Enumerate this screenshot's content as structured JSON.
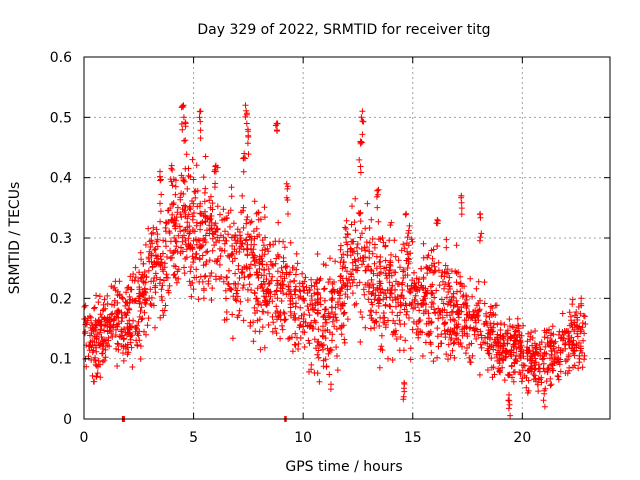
{
  "chart_data": {
    "type": "scatter",
    "title": "Day 329 of 2022, SRMTID for receiver titg",
    "xlabel": "GPS time / hours",
    "ylabel": "SRMTID / TECUs",
    "xlim": [
      0,
      24
    ],
    "ylim": [
      0,
      0.6
    ],
    "xticks": [
      0,
      5,
      10,
      15,
      20
    ],
    "yticks": [
      0,
      0.1,
      0.2,
      0.3,
      0.4,
      0.5,
      0.6
    ],
    "ytick_labels": [
      "0",
      "0.1",
      "0.2",
      "0.3",
      "0.4",
      "0.5",
      "0.6"
    ],
    "grid": true,
    "marker": "plus",
    "color": "#ff0000",
    "series": [
      {
        "name": "SRMTID",
        "profile": [
          [
            0.0,
            0.14
          ],
          [
            0.5,
            0.13
          ],
          [
            1.0,
            0.15
          ],
          [
            1.5,
            0.17
          ],
          [
            2.0,
            0.16
          ],
          [
            2.5,
            0.18
          ],
          [
            3.0,
            0.24
          ],
          [
            3.5,
            0.26
          ],
          [
            4.0,
            0.28
          ],
          [
            4.5,
            0.33
          ],
          [
            5.0,
            0.32
          ],
          [
            5.5,
            0.31
          ],
          [
            6.0,
            0.3
          ],
          [
            6.5,
            0.27
          ],
          [
            7.0,
            0.26
          ],
          [
            7.5,
            0.27
          ],
          [
            8.0,
            0.24
          ],
          [
            8.5,
            0.23
          ],
          [
            9.0,
            0.22
          ],
          [
            9.5,
            0.2
          ],
          [
            10.0,
            0.19
          ],
          [
            10.5,
            0.17
          ],
          [
            11.0,
            0.15
          ],
          [
            11.5,
            0.17
          ],
          [
            12.0,
            0.25
          ],
          [
            12.5,
            0.27
          ],
          [
            13.0,
            0.25
          ],
          [
            13.5,
            0.22
          ],
          [
            14.0,
            0.22
          ],
          [
            14.5,
            0.21
          ],
          [
            15.0,
            0.2
          ],
          [
            15.5,
            0.2
          ],
          [
            16.0,
            0.19
          ],
          [
            16.5,
            0.18
          ],
          [
            17.0,
            0.17
          ],
          [
            17.5,
            0.16
          ],
          [
            18.0,
            0.16
          ],
          [
            18.5,
            0.14
          ],
          [
            19.0,
            0.12
          ],
          [
            19.5,
            0.12
          ],
          [
            20.0,
            0.11
          ],
          [
            20.5,
            0.1
          ],
          [
            21.0,
            0.1
          ],
          [
            21.5,
            0.11
          ],
          [
            22.0,
            0.12
          ],
          [
            22.5,
            0.14
          ],
          [
            22.9,
            0.15
          ]
        ],
        "spread_profile": [
          [
            0.0,
            0.05
          ],
          [
            3.0,
            0.07
          ],
          [
            5.0,
            0.1
          ],
          [
            8.0,
            0.09
          ],
          [
            10.0,
            0.07
          ],
          [
            12.5,
            0.1
          ],
          [
            16.0,
            0.08
          ],
          [
            19.0,
            0.05
          ],
          [
            23.0,
            0.05
          ]
        ],
        "spikes": [
          [
            4.5,
            0.52
          ],
          [
            4.6,
            0.5
          ],
          [
            5.3,
            0.51
          ],
          [
            7.4,
            0.52
          ],
          [
            7.5,
            0.48
          ],
          [
            8.8,
            0.49
          ],
          [
            12.7,
            0.51
          ],
          [
            12.6,
            0.46
          ],
          [
            3.5,
            0.41
          ],
          [
            4.0,
            0.42
          ],
          [
            6.0,
            0.42
          ],
          [
            7.3,
            0.44
          ],
          [
            9.3,
            0.39
          ],
          [
            13.4,
            0.38
          ],
          [
            17.2,
            0.37
          ],
          [
            18.1,
            0.34
          ],
          [
            16.1,
            0.33
          ],
          [
            14.8,
            0.32
          ],
          [
            1.8,
            0.0
          ],
          [
            9.2,
            0.0
          ],
          [
            19.4,
            0.04
          ],
          [
            21.0,
            0.05
          ],
          [
            14.6,
            0.06
          ]
        ],
        "point_count": 2300
      }
    ]
  }
}
